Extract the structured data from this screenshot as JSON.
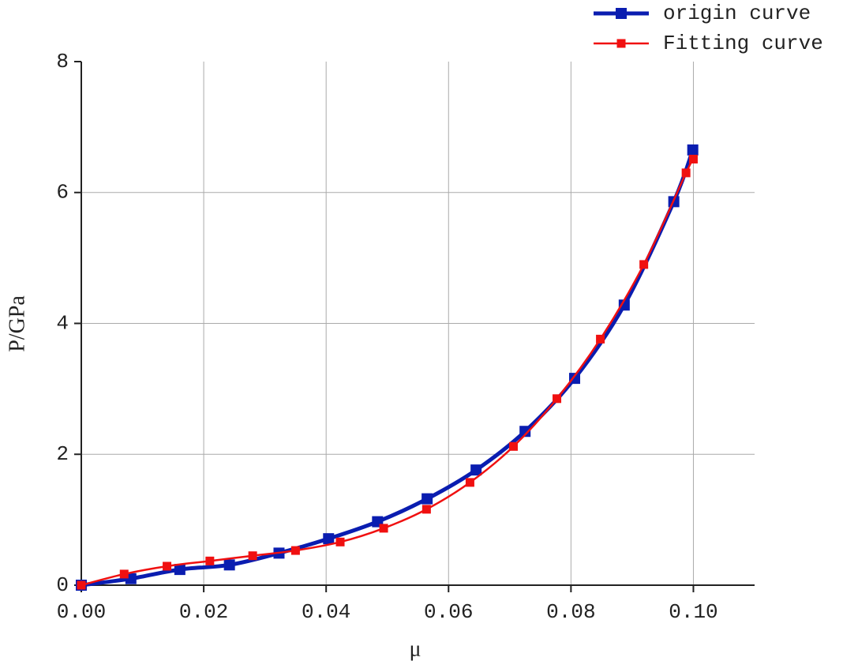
{
  "chart_data": {
    "type": "line",
    "x_label": "μ",
    "y_label": "P/GPa",
    "xlim": [
      0,
      0.11
    ],
    "ylim": [
      0,
      8
    ],
    "xticks": [
      {
        "value": 0,
        "label": "0.00"
      },
      0.02,
      0.04,
      0.06,
      0.08,
      {
        "value": 0.1,
        "label": "0.10"
      }
    ],
    "yticks": [
      0,
      2,
      4,
      6,
      8
    ],
    "grid": true,
    "legend": "top-right",
    "series": [
      {
        "name": "origin curve",
        "color": "#0a1db0",
        "x": [
          0,
          0.0081,
          0.0161,
          0.0242,
          0.0323,
          0.0404,
          0.0484,
          0.0565,
          0.0645,
          0.0725,
          0.0806,
          0.0887,
          0.0968,
          0.0999
        ],
        "values": [
          0,
          0.1,
          0.24,
          0.31,
          0.49,
          0.71,
          0.97,
          1.32,
          1.76,
          2.35,
          3.16,
          4.28,
          5.86,
          6.65
        ]
      },
      {
        "name": "Fitting curve",
        "color": "#f01010",
        "x": [
          0,
          0.007,
          0.014,
          0.021,
          0.028,
          0.035,
          0.0423,
          0.0494,
          0.0564,
          0.0635,
          0.0706,
          0.0777,
          0.0848,
          0.0919,
          0.0988,
          0.1
        ],
        "values": [
          0,
          0.17,
          0.29,
          0.37,
          0.45,
          0.53,
          0.66,
          0.87,
          1.16,
          1.57,
          2.12,
          2.85,
          3.76,
          4.9,
          6.3,
          6.51
        ]
      }
    ]
  }
}
